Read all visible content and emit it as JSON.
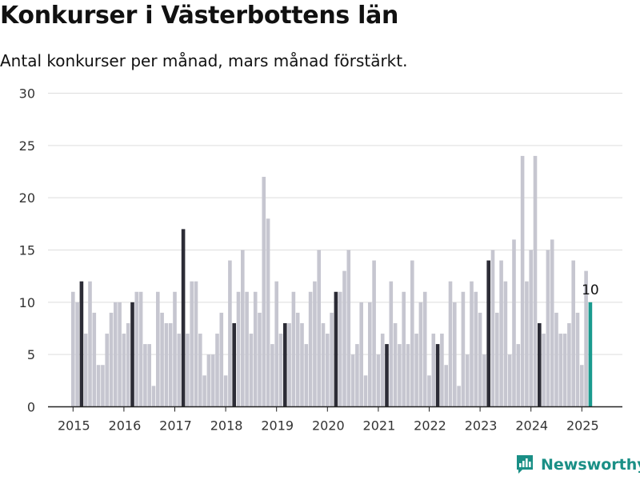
{
  "title": "Konkurser i Västerbottens län",
  "subtitle": "Antal konkurser per månad, mars månad förstärkt.",
  "brand": {
    "name": "Newsworthy",
    "color": "#1a8f86"
  },
  "colors": {
    "bar": "#c6c6d0",
    "highlight": "#2c2c36",
    "latest": "#1a9a8e",
    "grid": "#dddddd"
  },
  "chart_data": {
    "type": "bar",
    "xlabel": "",
    "ylabel": "",
    "ylim": [
      0,
      30
    ],
    "yticks": [
      0,
      5,
      10,
      15,
      20,
      25,
      30
    ],
    "xticks": [
      "2015",
      "2016",
      "2017",
      "2018",
      "2019",
      "2020",
      "2021",
      "2022",
      "2023",
      "2024",
      "2025"
    ],
    "start": "2015-01",
    "highlight_month": "mars",
    "grid": true,
    "annotation": {
      "month": "2025-03",
      "text": "10"
    },
    "values": [
      11,
      10,
      12,
      7,
      12,
      9,
      4,
      4,
      7,
      9,
      10,
      10,
      7,
      8,
      10,
      11,
      11,
      6,
      6,
      2,
      11,
      9,
      8,
      8,
      11,
      7,
      17,
      7,
      12,
      12,
      7,
      3,
      5,
      5,
      7,
      9,
      3,
      14,
      8,
      11,
      15,
      11,
      7,
      11,
      9,
      22,
      18,
      6,
      12,
      7,
      8,
      8,
      11,
      9,
      8,
      6,
      11,
      12,
      15,
      8,
      7,
      9,
      11,
      11,
      13,
      15,
      5,
      6,
      10,
      3,
      10,
      14,
      5,
      7,
      6,
      12,
      8,
      6,
      11,
      6,
      14,
      7,
      10,
      11,
      3,
      7,
      6,
      7,
      4,
      12,
      10,
      2,
      11,
      5,
      12,
      11,
      9,
      5,
      14,
      15,
      9,
      14,
      12,
      5,
      16,
      6,
      24,
      12,
      15,
      24,
      8,
      7,
      15,
      16,
      9,
      7,
      7,
      8,
      14,
      9,
      4,
      13,
      10
    ]
  }
}
